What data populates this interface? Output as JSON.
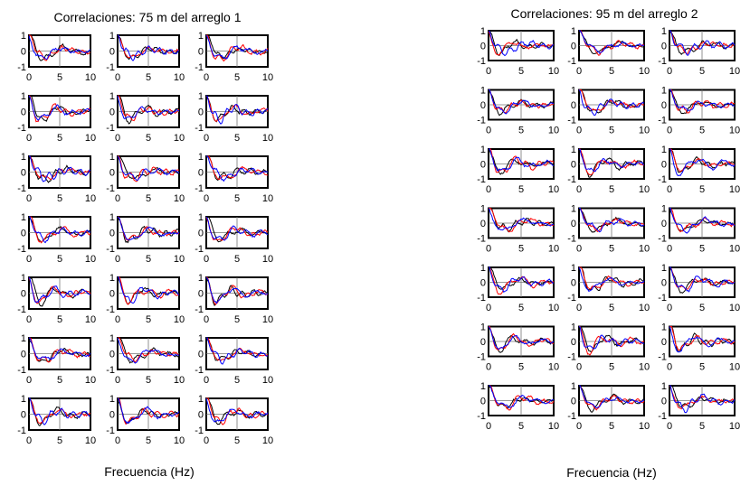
{
  "chart_data": [
    {
      "type": "line",
      "title": "Correlaciones: 75 m del arreglo 1",
      "xlabel": "Frecuencia (Hz)",
      "ylabel": "",
      "grid_rows": 7,
      "grid_cols": 3,
      "xlim": [
        0,
        10
      ],
      "ylim": [
        -1,
        1
      ],
      "xticks": [
        "0",
        "5",
        "10"
      ],
      "yticks": [
        "1",
        "0",
        "-1"
      ],
      "grid": true,
      "series_colors": [
        "#000000",
        "#ff0000",
        "#0000ff"
      ]
    },
    {
      "type": "line",
      "title": "Correlaciones: 95 m del arreglo 2",
      "xlabel": "Frecuencia (Hz)",
      "ylabel": "",
      "grid_rows": 7,
      "grid_cols": 3,
      "xlim": [
        0,
        10
      ],
      "ylim": [
        -1,
        1
      ],
      "xticks": [
        "0",
        "5",
        "10"
      ],
      "yticks": [
        "1",
        "0",
        "-1"
      ],
      "grid": true,
      "series_colors": [
        "#000000",
        "#ff0000",
        "#0000ff"
      ]
    }
  ]
}
